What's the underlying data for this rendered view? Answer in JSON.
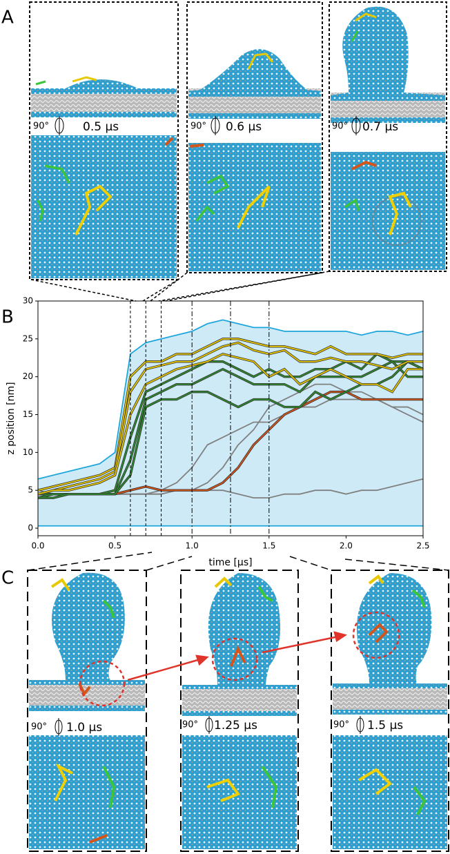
{
  "panel_labels": [
    "A",
    "B",
    "C"
  ],
  "panel_a": {
    "snapshots": [
      {
        "angle": "90°",
        "time": "0.5 µs"
      },
      {
        "angle": "90°",
        "time": "0.6 µs"
      },
      {
        "angle": "90°",
        "time": "0.7 µs"
      }
    ]
  },
  "panel_c": {
    "snapshots": [
      {
        "angle": "90°",
        "time": "1.0 µs"
      },
      {
        "angle": "90°",
        "time": "1.25 µs"
      },
      {
        "angle": "90°",
        "time": "1.5 µs"
      }
    ]
  },
  "chart_data": {
    "type": "line",
    "xlabel": "time [µs]",
    "ylabel": "z position [nm]",
    "xlim": [
      0,
      2.5
    ],
    "ylim": [
      -1,
      30
    ],
    "xticks": [
      {
        "value": 0,
        "label": "0.0"
      },
      0.5,
      {
        "value": 1,
        "label": "1.0"
      },
      1.5,
      {
        "value": 2,
        "label": "2.0"
      },
      2.5
    ],
    "yticks": [
      0,
      5,
      10,
      15,
      20,
      25,
      30
    ],
    "vlines": [
      0.6,
      0.7,
      0.8,
      1.0,
      1.25,
      1.5
    ],
    "area_color": "#cdeaf6",
    "x": [
      0,
      0.1,
      0.2,
      0.3,
      0.4,
      0.5,
      0.6,
      0.7,
      0.8,
      0.9,
      1.0,
      1.1,
      1.2,
      1.3,
      1.4,
      1.5,
      1.6,
      1.7,
      1.8,
      1.9,
      2.0,
      2.1,
      2.2,
      2.3,
      2.4,
      2.5
    ],
    "series": [
      {
        "color": "#1ea6dc",
        "values": [
          6.5,
          7,
          7.5,
          8,
          8.5,
          10,
          23,
          24.5,
          25,
          25.5,
          26,
          27,
          27.5,
          27,
          26.5,
          26.5,
          26,
          26,
          26,
          26,
          26,
          25.5,
          26,
          26,
          25.5,
          26
        ]
      },
      {
        "color": "#1ea6dc",
        "values": [
          0.3,
          0.3,
          0.3,
          0.3,
          0.3,
          0.3,
          0.3,
          0.3,
          0.3,
          0.3,
          0.3,
          0.3,
          0.3,
          0.3,
          0.3,
          0.3,
          0.3,
          0.3,
          0.3,
          0.3,
          0.3,
          0.3,
          0.3,
          0.3,
          0.3,
          0.3
        ]
      },
      {
        "color": "#808080",
        "values": [
          5,
          4.5,
          4.5,
          4.5,
          4.5,
          4.5,
          4.5,
          4.5,
          5,
          6,
          8,
          11,
          12,
          13,
          14,
          14,
          15,
          16,
          16,
          17,
          17,
          17,
          17,
          16,
          15,
          14
        ]
      },
      {
        "color": "#808080",
        "values": [
          4.5,
          4.5,
          4.5,
          4.5,
          4.5,
          4.5,
          4.5,
          4.5,
          4.5,
          5,
          5,
          6,
          8,
          11,
          13,
          16,
          17,
          18,
          19,
          19,
          18,
          18,
          17,
          16,
          16,
          15
        ]
      },
      {
        "color": "#808080",
        "values": [
          4.5,
          4.5,
          4.5,
          4.5,
          4.5,
          4.5,
          4.5,
          4.5,
          4.5,
          5,
          5,
          5,
          5,
          4.5,
          4,
          4,
          4.5,
          4.5,
          5,
          5,
          4.5,
          5,
          5,
          5.5,
          6,
          6.5
        ]
      },
      {
        "color": "#d4541a",
        "values": [
          4.5,
          4.5,
          4.5,
          4.5,
          4.5,
          4.5,
          5,
          5.5,
          5,
          5,
          5,
          5,
          6,
          8,
          11,
          13,
          15,
          16,
          17,
          18,
          18,
          17,
          17,
          17,
          17,
          17
        ]
      },
      {
        "color": "#2e8b2e",
        "values": [
          4.5,
          4.5,
          4.5,
          4.5,
          4.5,
          5,
          12,
          18,
          19,
          20,
          21,
          22,
          22,
          21,
          20,
          21,
          20,
          20,
          21,
          21,
          22,
          21,
          23,
          22,
          22,
          21
        ]
      },
      {
        "color": "#2e8b2e",
        "values": [
          4,
          4.5,
          4.5,
          4.5,
          4.5,
          4.5,
          9,
          17,
          18,
          19,
          19,
          20,
          21,
          20,
          19,
          19,
          19,
          18,
          20,
          20,
          20,
          20,
          21,
          22,
          20,
          20
        ]
      },
      {
        "color": "#2e8b2e",
        "values": [
          4,
          4,
          4.5,
          4.5,
          4.5,
          4.5,
          7,
          16,
          17,
          17,
          18,
          18,
          17,
          16,
          17,
          17,
          16,
          16,
          18,
          17,
          18,
          19,
          19,
          20,
          22,
          21
        ]
      },
      {
        "color": "#e8c800",
        "values": [
          5,
          5.5,
          6,
          6.5,
          7,
          8,
          20,
          22,
          22,
          23,
          23,
          24,
          25,
          25,
          24.5,
          24,
          24,
          23.5,
          23,
          24,
          23,
          23,
          23,
          22.5,
          23,
          23
        ]
      },
      {
        "color": "#e8c800",
        "values": [
          4.5,
          5,
          5.5,
          6,
          6.5,
          7.5,
          18,
          21,
          21.5,
          22,
          22,
          23,
          24,
          24.5,
          23.5,
          23,
          23.5,
          22,
          22,
          22.5,
          22,
          22,
          21.5,
          21,
          22,
          22
        ]
      },
      {
        "color": "#e8c800",
        "values": [
          4.5,
          5,
          5,
          5.5,
          6,
          7,
          15,
          19,
          20,
          21,
          21.5,
          22,
          23,
          22.5,
          22,
          20,
          21,
          19,
          20,
          21,
          20,
          19,
          19,
          18,
          21,
          21
        ]
      }
    ]
  }
}
